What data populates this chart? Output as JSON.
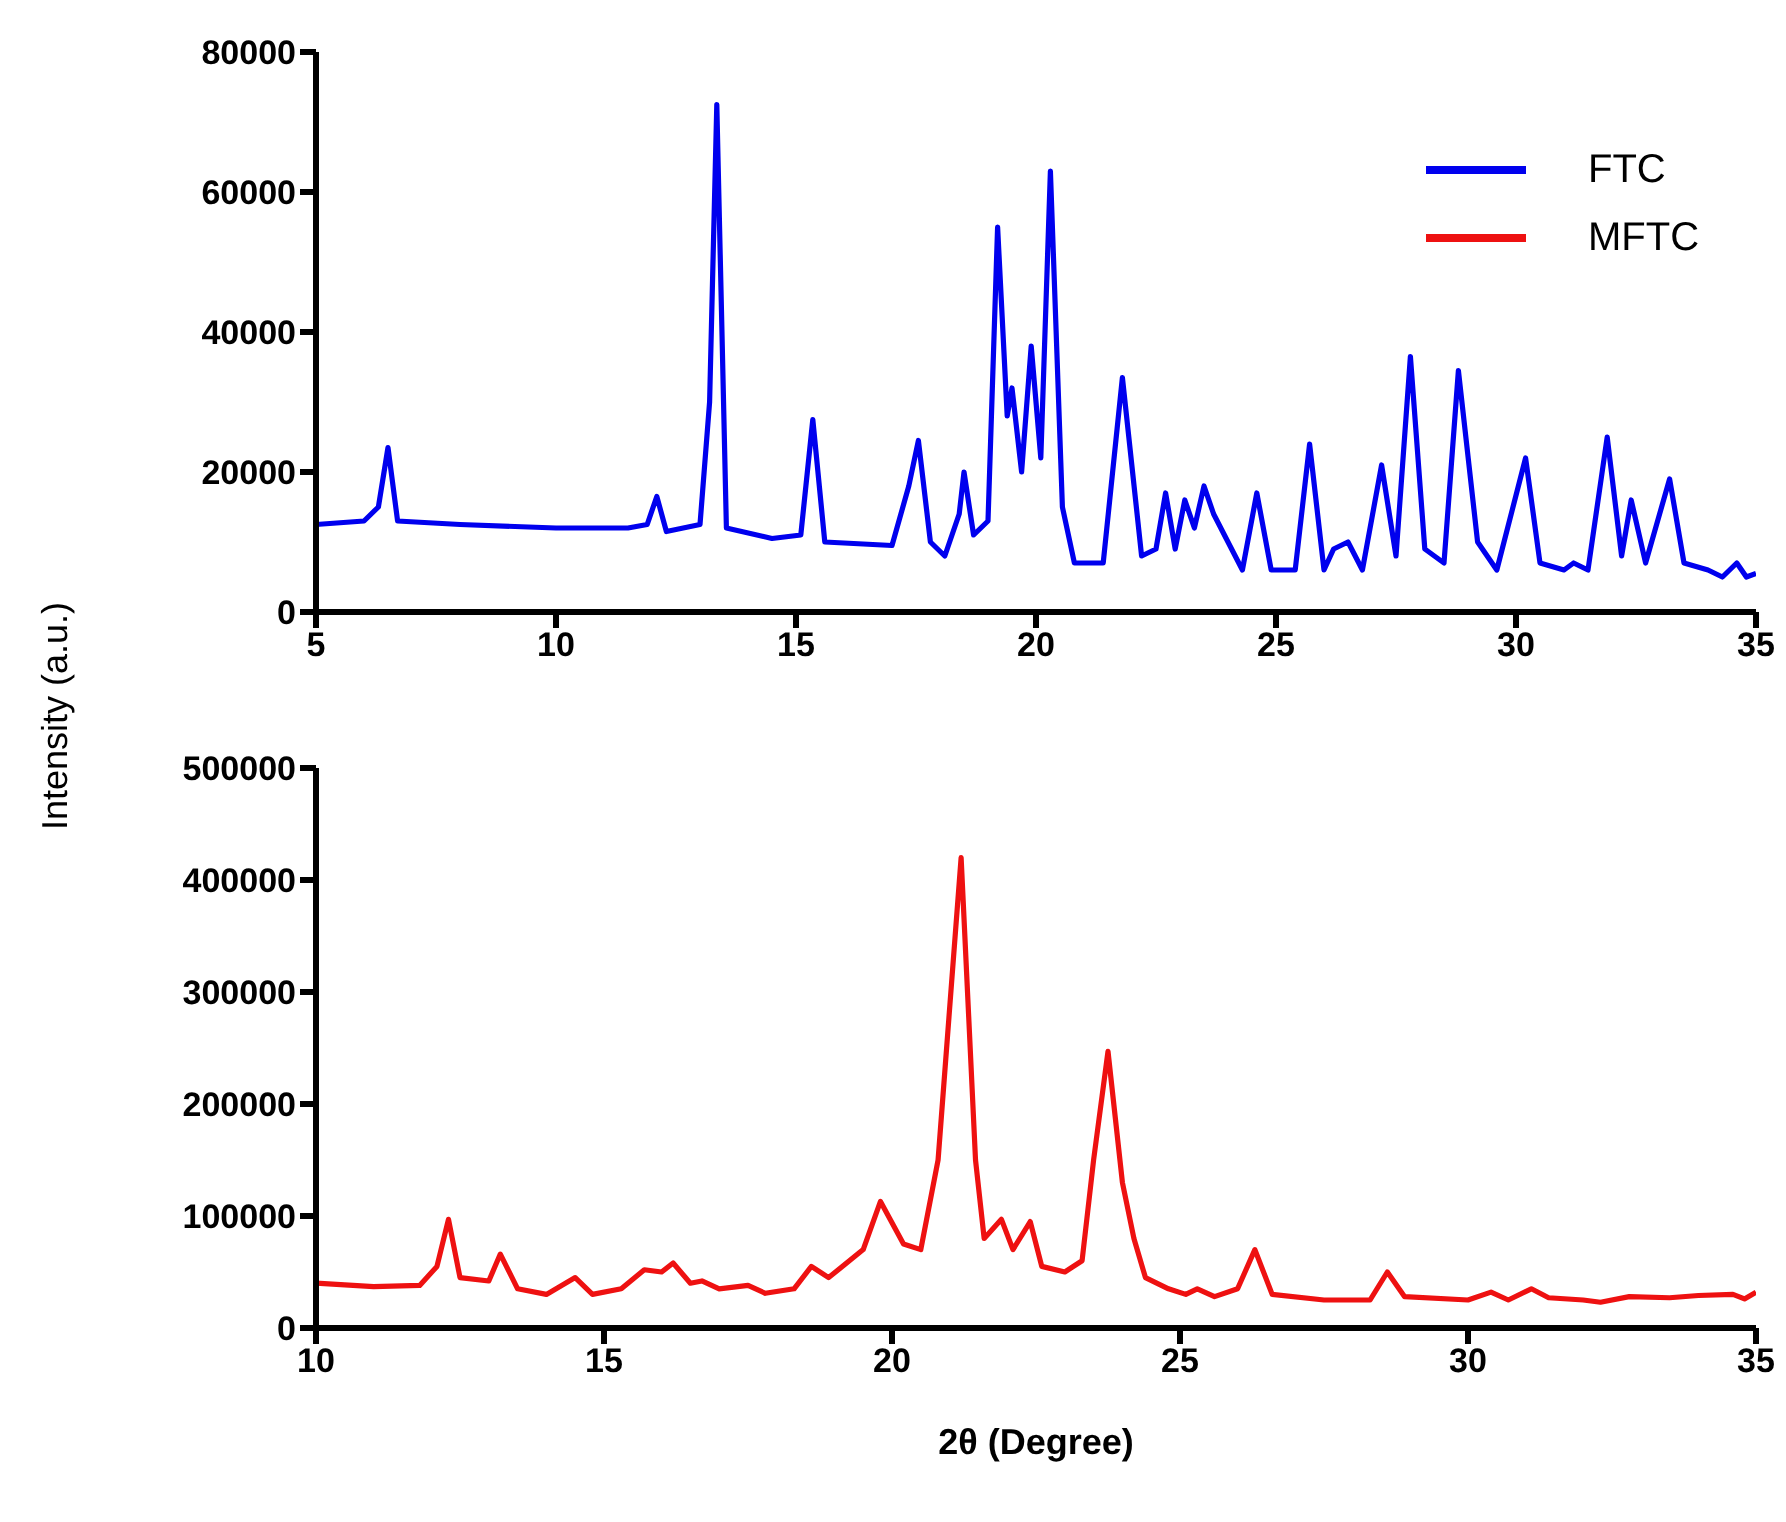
{
  "chart_data": [
    {
      "type": "line",
      "ylabel": "Intensity (a.u.)",
      "xlim": [
        5,
        35
      ],
      "xticks": [
        5,
        10,
        15,
        20,
        25,
        30,
        35
      ],
      "ylim": [
        0,
        80000
      ],
      "yticks": [
        0,
        20000,
        40000,
        60000,
        80000
      ],
      "legend": "top right",
      "marker": "none",
      "line_style": "solid",
      "series": [
        {
          "name": "FTC",
          "color": "#0000ee",
          "x": [
            5,
            6,
            6.3,
            6.5,
            6.7,
            8,
            10,
            11.5,
            11.9,
            12.1,
            12.3,
            13,
            13.2,
            13.35,
            13.55,
            14.5,
            15.1,
            15.35,
            15.6,
            17,
            17.35,
            17.55,
            17.8,
            18.1,
            18.4,
            18.5,
            18.7,
            19,
            19.2,
            19.4,
            19.5,
            19.7,
            19.9,
            20.1,
            20.3,
            20.55,
            20.8,
            21.4,
            21.8,
            22.2,
            22.5,
            22.7,
            22.9,
            23.1,
            23.3,
            23.5,
            23.7,
            24,
            24.3,
            24.6,
            24.9,
            25.4,
            25.7,
            26,
            26.2,
            26.5,
            26.8,
            27.2,
            27.5,
            27.8,
            28.1,
            28.5,
            28.8,
            29.2,
            29.6,
            30.2,
            30.5,
            31,
            31.2,
            31.5,
            31.9,
            32.2,
            32.4,
            32.7,
            33.2,
            33.5,
            34,
            34.3,
            34.6,
            34.8,
            35
          ],
          "values": [
            12500,
            13000,
            15000,
            23500,
            13000,
            12500,
            12000,
            12000,
            12500,
            16500,
            11500,
            12500,
            30000,
            72500,
            12000,
            10500,
            11000,
            27500,
            10000,
            9500,
            18000,
            24500,
            10000,
            8000,
            14000,
            20000,
            11000,
            13000,
            55000,
            28000,
            32000,
            20000,
            38000,
            22000,
            63000,
            15000,
            7000,
            7000,
            33500,
            8000,
            9000,
            17000,
            9000,
            16000,
            12000,
            18000,
            14000,
            10000,
            6000,
            17000,
            6000,
            6000,
            24000,
            6000,
            9000,
            10000,
            6000,
            21000,
            8000,
            36500,
            9000,
            7000,
            34500,
            10000,
            6000,
            22000,
            7000,
            6000,
            7000,
            6000,
            25000,
            8000,
            16000,
            7000,
            19000,
            7000,
            6000,
            5000,
            7000,
            5000,
            5500
          ]
        }
      ]
    },
    {
      "type": "line",
      "xlabel": "2θ (Degree)",
      "xlim": [
        10,
        35
      ],
      "xticks": [
        10,
        15,
        20,
        25,
        30,
        35
      ],
      "ylim": [
        0,
        500000
      ],
      "yticks": [
        0,
        100000,
        200000,
        300000,
        400000,
        500000
      ],
      "legend": "top right",
      "marker": "none",
      "line_style": "solid",
      "series": [
        {
          "name": "MFTC",
          "color": "#ee1111",
          "x": [
            10,
            11,
            11.8,
            12.1,
            12.3,
            12.5,
            13,
            13.2,
            13.5,
            14,
            14.5,
            14.8,
            15.3,
            15.7,
            16,
            16.2,
            16.5,
            16.7,
            17,
            17.5,
            17.8,
            18.3,
            18.6,
            18.9,
            19.5,
            19.8,
            20.2,
            20.5,
            20.8,
            21.2,
            21.45,
            21.6,
            21.9,
            22.1,
            22.4,
            22.6,
            23,
            23.3,
            23.5,
            23.75,
            24,
            24.2,
            24.4,
            24.8,
            25.1,
            25.3,
            25.6,
            26,
            26.3,
            26.6,
            27.5,
            28.3,
            28.6,
            28.9,
            30,
            30.4,
            30.7,
            31.1,
            31.4,
            32,
            32.3,
            32.8,
            33.5,
            34,
            34.6,
            34.8,
            35
          ],
          "values": [
            40000,
            37000,
            38000,
            55000,
            97000,
            45000,
            42000,
            66000,
            35000,
            30000,
            45000,
            30000,
            35000,
            52000,
            50000,
            58000,
            40000,
            42000,
            35000,
            38000,
            31000,
            35000,
            55000,
            45000,
            70000,
            113000,
            75000,
            70000,
            150000,
            420000,
            150000,
            80000,
            97000,
            70000,
            95000,
            55000,
            50000,
            60000,
            150000,
            247000,
            130000,
            80000,
            45000,
            35000,
            30000,
            35000,
            28000,
            35000,
            70000,
            30000,
            25000,
            25000,
            50000,
            28000,
            25000,
            32000,
            25000,
            35000,
            27000,
            25000,
            23000,
            28000,
            27000,
            29000,
            30000,
            26000,
            32000
          ]
        }
      ]
    }
  ]
}
